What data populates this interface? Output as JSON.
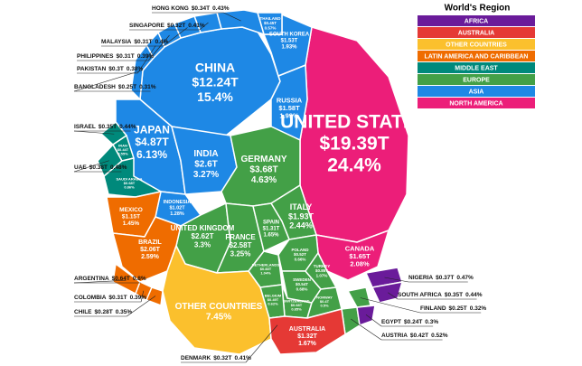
{
  "chart_data": {
    "type": "voronoi_treemap",
    "legend_title": "World's Region",
    "regions": [
      {
        "name": "AFRICA",
        "color": "#6a1b9a"
      },
      {
        "name": "AUSTRALIA",
        "color": "#e53935"
      },
      {
        "name": "OTHER COUNTRIES",
        "color": "#fbc02d"
      },
      {
        "name": "LATIN AMERICA AND CARIBBEAN",
        "color": "#ef6c00"
      },
      {
        "name": "MIDDLE EAST",
        "color": "#00897b"
      },
      {
        "name": "EUROPE",
        "color": "#43a047"
      },
      {
        "name": "ASIA",
        "color": "#1e88e5"
      },
      {
        "name": "NORTH AMERICA",
        "color": "#ec1e79"
      }
    ],
    "countries": [
      {
        "name": "UNITED STATES",
        "region": "NORTH AMERICA",
        "value": 19.39,
        "value_label": "$19.39T",
        "share": 24.4,
        "share_label": "24.4%"
      },
      {
        "name": "CANADA",
        "region": "NORTH AMERICA",
        "value": 1.65,
        "value_label": "$1.65T",
        "share": 2.08,
        "share_label": "2.08%"
      },
      {
        "name": "CHINA",
        "region": "ASIA",
        "value": 12.24,
        "value_label": "$12.24T",
        "share": 15.4,
        "share_label": "15.4%"
      },
      {
        "name": "JAPAN",
        "region": "ASIA",
        "value": 4.87,
        "value_label": "$4.87T",
        "share": 6.13,
        "share_label": "6.13%"
      },
      {
        "name": "INDIA",
        "region": "ASIA",
        "value": 2.6,
        "value_label": "$2.6T",
        "share": 3.27,
        "share_label": "3.27%"
      },
      {
        "name": "RUSSIA",
        "region": "ASIA",
        "value": 1.58,
        "value_label": "$1.58T",
        "share": 1.99,
        "share_label": "1.99%"
      },
      {
        "name": "SOUTH KOREA",
        "region": "ASIA",
        "value": 1.53,
        "value_label": "$1.53T",
        "share": 1.93,
        "share_label": "1.93%"
      },
      {
        "name": "INDONESIA",
        "region": "ASIA",
        "value": 1.02,
        "value_label": "$1.02T",
        "share": 1.28,
        "share_label": "1.28%"
      },
      {
        "name": "THAILAND",
        "region": "ASIA",
        "value": 0.45,
        "value_label": "$0.45T",
        "share": 0.57,
        "share_label": "0.57%"
      },
      {
        "name": "HONG KONG",
        "region": "ASIA",
        "value": 0.34,
        "value_label": "$0.34T",
        "share": 0.43,
        "share_label": "0.43%"
      },
      {
        "name": "SINGAPORE",
        "region": "ASIA",
        "value": 0.32,
        "value_label": "$0.32T",
        "share": 0.41,
        "share_label": "0.41%"
      },
      {
        "name": "MALAYSIA",
        "region": "ASIA",
        "value": 0.31,
        "value_label": "$0.31T",
        "share": 0.4,
        "share_label": "0.4%"
      },
      {
        "name": "PHILIPPINES",
        "region": "ASIA",
        "value": 0.31,
        "value_label": "$0.31T",
        "share": 0.39,
        "share_label": "0.39%"
      },
      {
        "name": "PAKISTAN",
        "region": "ASIA",
        "value": 0.3,
        "value_label": "$0.3T",
        "share": 0.38,
        "share_label": "0.38%"
      },
      {
        "name": "BANGLADESH",
        "region": "ASIA",
        "value": 0.25,
        "value_label": "$0.25T",
        "share": 0.31,
        "share_label": "0.31%"
      },
      {
        "name": "ISRAEL",
        "region": "MIDDLE EAST",
        "value": 0.35,
        "value_label": "$0.35T",
        "share": 0.44,
        "share_label": "0.44%"
      },
      {
        "name": "UAE",
        "region": "MIDDLE EAST",
        "value": 0.38,
        "value_label": "$0.38T",
        "share": 0.48,
        "share_label": "0.48%"
      },
      {
        "name": "IRAN",
        "region": "MIDDLE EAST",
        "value": 0.44,
        "value_label": "$0.44T",
        "share": 0.55,
        "share_label": "0.55%"
      },
      {
        "name": "SAUDI ARABIA",
        "region": "MIDDLE EAST",
        "value": 0.68,
        "value_label": "$0.68T",
        "share": 0.86,
        "share_label": "0.86%"
      },
      {
        "name": "GERMANY",
        "region": "EUROPE",
        "value": 3.68,
        "value_label": "$3.68T",
        "share": 4.63,
        "share_label": "4.63%"
      },
      {
        "name": "UNITED KINGDOM",
        "region": "EUROPE",
        "value": 2.62,
        "value_label": "$2.62T",
        "share": 3.3,
        "share_label": "3.3%"
      },
      {
        "name": "FRANCE",
        "region": "EUROPE",
        "value": 2.58,
        "value_label": "$2.58T",
        "share": 3.25,
        "share_label": "3.25%"
      },
      {
        "name": "ITALY",
        "region": "EUROPE",
        "value": 1.93,
        "value_label": "$1.93T",
        "share": 2.44,
        "share_label": "2.44%"
      },
      {
        "name": "SPAIN",
        "region": "EUROPE",
        "value": 1.31,
        "value_label": "$1.31T",
        "share": 1.65,
        "share_label": "1.65%"
      },
      {
        "name": "NETHERLANDS",
        "region": "EUROPE",
        "value": 0.83,
        "value_label": "$0.83T",
        "share": 1.04,
        "share_label": "1.04%"
      },
      {
        "name": "SWITZERLAND",
        "region": "EUROPE",
        "value": 0.68,
        "value_label": "$0.68T",
        "share": 0.85,
        "share_label": "0.85%"
      },
      {
        "name": "BELGIUM",
        "region": "EUROPE",
        "value": 0.49,
        "value_label": "$0.49T",
        "share": 0.62,
        "share_label": "0.62%"
      },
      {
        "name": "POLAND",
        "region": "EUROPE",
        "value": 0.52,
        "value_label": "$0.52T",
        "share": 0.66,
        "share_label": "0.66%"
      },
      {
        "name": "SWEDEN",
        "region": "EUROPE",
        "value": 0.54,
        "value_label": "$0.54T",
        "share": 0.68,
        "share_label": "0.68%"
      },
      {
        "name": "TURKEY",
        "region": "EUROPE",
        "value": 0.85,
        "value_label": "$0.85T",
        "share": 1.07,
        "share_label": "1.07%"
      },
      {
        "name": "NORWAY",
        "region": "EUROPE",
        "value": 0.4,
        "value_label": "$0.4T",
        "share": 0.5,
        "share_label": "0.5%"
      },
      {
        "name": "AUSTRIA",
        "region": "EUROPE",
        "value": 0.42,
        "value_label": "$0.42T",
        "share": 0.52,
        "share_label": "0.52%"
      },
      {
        "name": "DENMARK",
        "region": "EUROPE",
        "value": 0.32,
        "value_label": "$0.32T",
        "share": 0.41,
        "share_label": "0.41%"
      },
      {
        "name": "FINLAND",
        "region": "EUROPE",
        "value": 0.25,
        "value_label": "$0.25T",
        "share": 0.32,
        "share_label": "0.32%"
      },
      {
        "name": "MEXICO",
        "region": "LATIN AMERICA AND CARIBBEAN",
        "value": 1.15,
        "value_label": "$1.15T",
        "share": 1.45,
        "share_label": "1.45%"
      },
      {
        "name": "BRAZIL",
        "region": "LATIN AMERICA AND CARIBBEAN",
        "value": 2.06,
        "value_label": "$2.06T",
        "share": 2.59,
        "share_label": "2.59%"
      },
      {
        "name": "ARGENTINA",
        "region": "LATIN AMERICA AND CARIBBEAN",
        "value": 0.64,
        "value_label": "$0.64T",
        "share": 0.8,
        "share_label": "0.8%"
      },
      {
        "name": "COLOMBIA",
        "region": "LATIN AMERICA AND CARIBBEAN",
        "value": 0.31,
        "value_label": "$0.31T",
        "share": 0.39,
        "share_label": "0.39%"
      },
      {
        "name": "CHILE",
        "region": "LATIN AMERICA AND CARIBBEAN",
        "value": 0.28,
        "value_label": "$0.28T",
        "share": 0.35,
        "share_label": "0.35%"
      },
      {
        "name": "OTHER COUNTRIES",
        "region": "OTHER COUNTRIES",
        "share": 7.45,
        "share_label": "7.45%"
      },
      {
        "name": "AUSTRALIA",
        "region": "AUSTRALIA",
        "value": 1.32,
        "value_label": "$1.32T",
        "share": 1.67,
        "share_label": "1.67%"
      },
      {
        "name": "NIGERIA",
        "region": "AFRICA",
        "value": 0.37,
        "value_label": "$0.37T",
        "share": 0.47,
        "share_label": "0.47%"
      },
      {
        "name": "SOUTH AFRICA",
        "region": "AFRICA",
        "value": 0.35,
        "value_label": "$0.35T",
        "share": 0.44,
        "share_label": "0.44%"
      },
      {
        "name": "EGYPT",
        "region": "AFRICA",
        "value": 0.24,
        "value_label": "$0.24T",
        "share": 0.3,
        "share_label": "0.3%"
      }
    ]
  }
}
